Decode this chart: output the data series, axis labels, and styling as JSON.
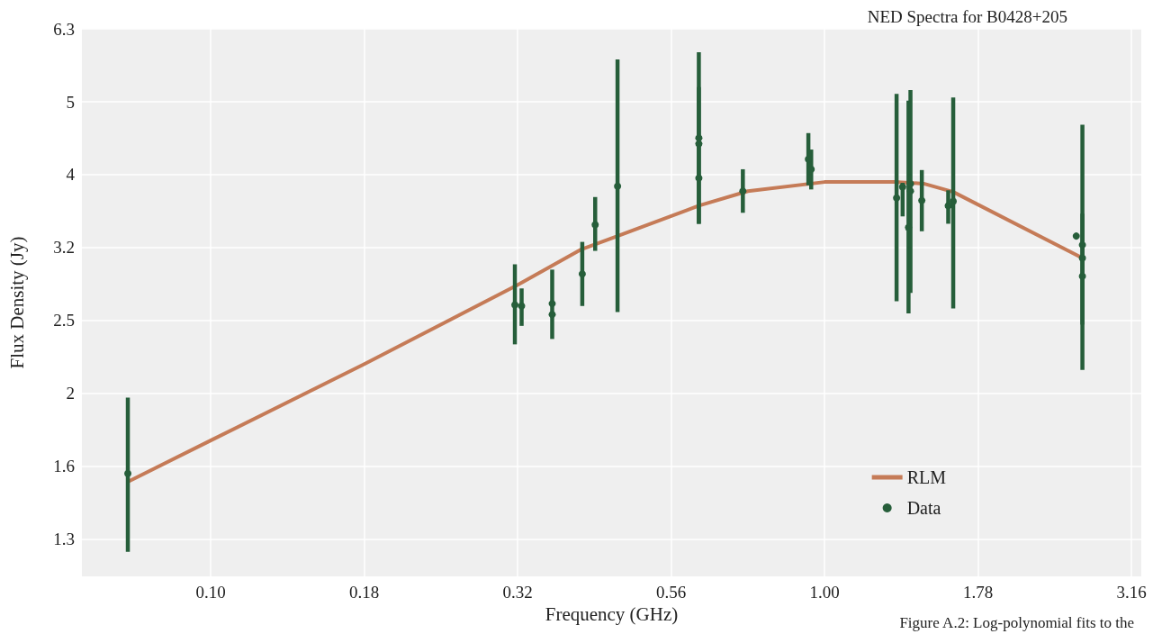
{
  "chart_data": {
    "type": "scatter",
    "title": "NED Spectra for B0428+205",
    "xlabel": "Frequency (GHz)",
    "ylabel": "Flux Density (Jy)",
    "annotations": [
      "Figure A.2: Log-polynomial fits to the"
    ],
    "log": "xy",
    "grid": true,
    "legend": "bottom right",
    "xlim": [
      0.0617,
      3.28
    ],
    "ylim": [
      1.12,
      6.31
    ],
    "xticks": [
      {
        "value": 0.1,
        "label": "0.10"
      },
      {
        "value": 0.1778,
        "label": "0.18"
      },
      {
        "value": 0.3162,
        "label": "0.32"
      },
      {
        "value": 0.5623,
        "label": "0.56"
      },
      {
        "value": 1,
        "label": "1.00"
      },
      {
        "value": 1.7783,
        "label": "1.78"
      },
      {
        "value": 3.1623,
        "label": "3.16"
      }
    ],
    "yticks": [
      {
        "value": 1.2589,
        "label": "1.3"
      },
      {
        "value": 1.5849,
        "label": "1.6"
      },
      {
        "value": 1.9953,
        "label": "2"
      },
      {
        "value": 2.5119,
        "label": "2.5"
      },
      {
        "value": 3.1623,
        "label": "3.2"
      },
      {
        "value": 3.9811,
        "label": "4"
      },
      {
        "value": 5.0119,
        "label": "5"
      },
      {
        "value": 6.3096,
        "label": "6.3"
      }
    ],
    "series": [
      {
        "name": "RLM",
        "type": "line",
        "color": "#c57b57",
        "line_style": "solid",
        "marker": "none",
        "x": [
          0.0733,
          0.1,
          0.178,
          0.316,
          0.4,
          0.46,
          0.624,
          0.75,
          1.0,
          1.3,
          1.45,
          1.62,
          2.63
        ],
        "values": [
          1.51,
          1.72,
          2.19,
          2.81,
          3.14,
          3.28,
          3.61,
          3.78,
          3.89,
          3.89,
          3.87,
          3.77,
          3.06
        ]
      },
      {
        "name": "Data",
        "color": "#265e3a",
        "marker": "circle",
        "x": [
          0.0733,
          0.313,
          0.321,
          0.36,
          0.36,
          0.403,
          0.423,
          0.46,
          0.624,
          0.624,
          0.624,
          0.736,
          0.941,
          0.951,
          1.31,
          1.34,
          1.37,
          1.38,
          1.38,
          1.44,
          1.59,
          1.62,
          2.57,
          2.63,
          2.63,
          2.63
        ],
        "values": [
          1.55,
          2.64,
          2.63,
          2.65,
          2.56,
          2.91,
          3.4,
          3.84,
          4.47,
          4.39,
          3.94,
          3.78,
          4.18,
          4.05,
          3.7,
          3.83,
          3.37,
          3.78,
          3.87,
          3.67,
          3.61,
          3.66,
          3.28,
          3.19,
          3.06,
          2.89
        ],
        "errors": [
          [
            1.21,
            1.97
          ],
          [
            2.33,
            3.0
          ],
          [
            2.47,
            2.78
          ],
          [
            2.37,
            2.95
          ],
          null,
          [
            2.63,
            3.22
          ],
          [
            3.13,
            3.71
          ],
          [
            2.58,
            5.73
          ],
          [
            3.41,
            5.86
          ],
          [
            3.41,
            5.25
          ],
          null,
          [
            3.53,
            4.05
          ],
          [
            3.85,
            4.54
          ],
          [
            3.8,
            4.31
          ],
          [
            2.67,
            5.14
          ],
          [
            3.49,
            3.88
          ],
          [
            2.57,
            5.03
          ],
          [
            2.74,
            5.2
          ],
          null,
          [
            3.33,
            4.04
          ],
          [
            3.41,
            3.79
          ],
          [
            2.61,
            5.08
          ],
          null,
          [
            2.48,
            3.52
          ],
          [
            2.15,
            4.66
          ],
          null
        ]
      }
    ]
  }
}
